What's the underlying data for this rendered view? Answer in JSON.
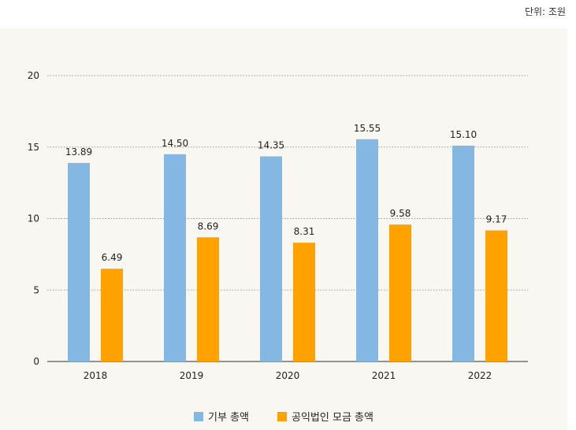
{
  "unit_label": "단위: 조원",
  "colors": {
    "series1": "#85b7e3",
    "series2": "#ffa200",
    "panel": "#f9f7f1"
  },
  "chart_data": {
    "type": "bar",
    "categories": [
      "2018",
      "2019",
      "2020",
      "2021",
      "2022"
    ],
    "series": [
      {
        "name": "기부 총액",
        "values": [
          13.89,
          14.5,
          14.35,
          15.55,
          15.1
        ],
        "labels": [
          "13.89",
          "14.50",
          "14.35",
          "15.55",
          "15.10"
        ]
      },
      {
        "name": "공익법인 모금 총액",
        "values": [
          6.49,
          8.69,
          8.31,
          9.58,
          9.17
        ],
        "labels": [
          "6.49",
          "8.69",
          "8.31",
          "9.58",
          "9.17"
        ]
      }
    ],
    "yticks": [
      0,
      5,
      10,
      15,
      20
    ],
    "ylim": [
      0,
      20
    ],
    "grid": true,
    "legend_position": "bottom"
  }
}
